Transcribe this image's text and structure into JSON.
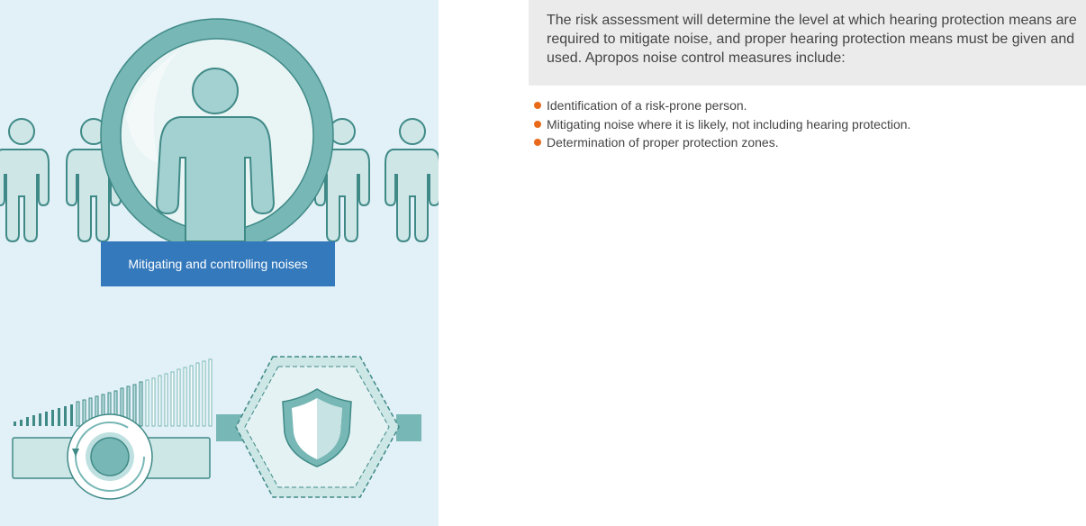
{
  "illustration": {
    "caption": "Mitigating and controlling noises",
    "colors": {
      "background": "#e2f0f7",
      "teal": "#77b7b5",
      "dark_teal": "#3f8a87",
      "caption_bg": "#3479bc"
    },
    "icons": [
      "person-group-icon",
      "magnifier-icon",
      "volume-dial-icon",
      "shield-icon"
    ]
  },
  "callout": {
    "text": "The risk assessment will determine the level at which hearing protection means are required to mitigate noise, and proper hearing protection means must be given and used. Apropos noise control measures include:"
  },
  "bullets": [
    "Identification of a risk-prone person.",
    "Mitigating noise where it is likely, not including hearing protection.",
    "Determination of proper protection zones."
  ],
  "accent_color": "#e96a1a"
}
